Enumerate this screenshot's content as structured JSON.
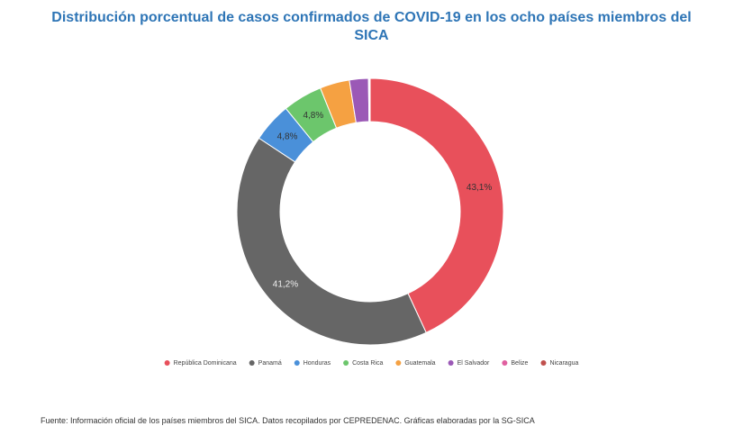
{
  "chart_data": {
    "type": "donut",
    "title": "Distribución porcentual de casos confirmados de COVID-19 en los ocho países miembros del SICA",
    "categories": [
      "República Dominicana",
      "Panamá",
      "Honduras",
      "Costa Rica",
      "Guatemala",
      "El Salvador",
      "Belize",
      "Nicaragua"
    ],
    "values": [
      43.1,
      41.2,
      4.8,
      4.8,
      3.6,
      2.3,
      0.1,
      0.1
    ],
    "value_labels": [
      "43,1%",
      "41,2%",
      "4,8%",
      "4,8%",
      null,
      null,
      null,
      null
    ],
    "colors": [
      "#e8505b",
      "#666666",
      "#4a90d9",
      "#6cc66c",
      "#f5a142",
      "#9b59b6",
      "#e060a0",
      "#c0504d"
    ],
    "legend": "bottom"
  },
  "footnote": "Fuente: Información oficial de los países miembros del SICA. Datos recopilados por CEPREDENAC. Gráficas elaboradas por la SG-SICA"
}
